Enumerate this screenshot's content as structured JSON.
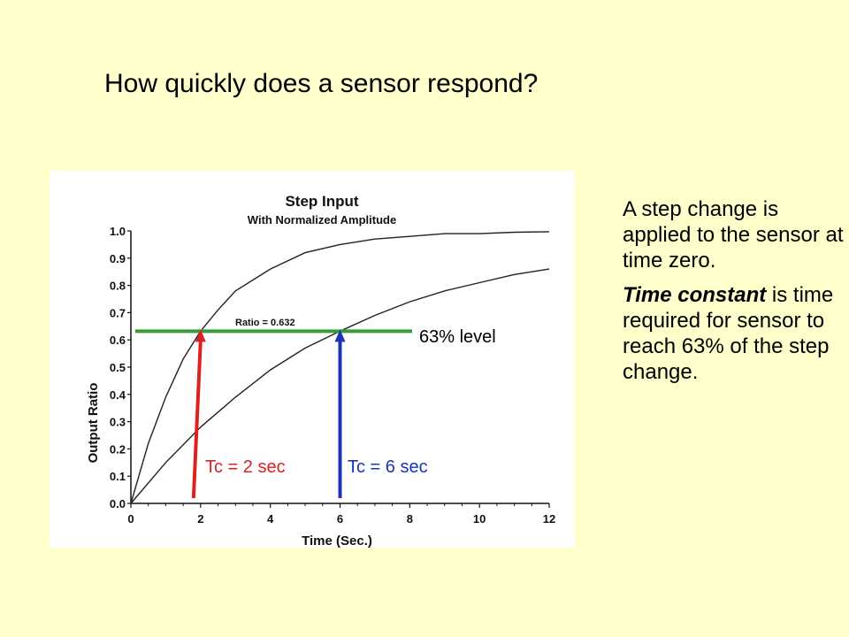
{
  "slide": {
    "title": "How quickly does a sensor respond?",
    "description_1": "A step change is applied to the sensor at time zero.",
    "description_2_em": "Time constant",
    "description_2_rest": " is time required for sensor to reach 63% of the step change."
  },
  "overlay": {
    "level_label": "63% level",
    "tc2_label": "Tc = 2 sec",
    "tc6_label": "Tc = 6 sec"
  },
  "colors": {
    "background": "#ffffcc",
    "level_line": "#3a9a3a",
    "tc2_arrow": "#dd2020",
    "tc6_arrow": "#1a33bb"
  },
  "chart_data": {
    "type": "line",
    "title": "Step Input",
    "subtitle": "With Normalized Amplitude",
    "xlabel": "Time (Sec.)",
    "ylabel": "Output Ratio",
    "xlim": [
      0,
      12
    ],
    "ylim": [
      0,
      1.0
    ],
    "x_ticks": [
      "0",
      "2",
      "4",
      "6",
      "8",
      "10",
      "12"
    ],
    "y_ticks": [
      "0.0",
      "0.1",
      "0.2",
      "0.3",
      "0.4",
      "0.5",
      "0.6",
      "0.7",
      "0.8",
      "0.9",
      "1.0"
    ],
    "series": [
      {
        "x": [
          0,
          0.5,
          1,
          1.5,
          2,
          2.5,
          3,
          4,
          5,
          6,
          7,
          8,
          9,
          10,
          11,
          12
        ],
        "values": [
          0,
          0.22,
          0.39,
          0.53,
          0.632,
          0.71,
          0.78,
          0.86,
          0.92,
          0.95,
          0.97,
          0.98,
          0.99,
          0.99,
          0.995,
          0.997
        ]
      },
      {
        "x": [
          0,
          1,
          2,
          3,
          4,
          5,
          6,
          7,
          8,
          9,
          10,
          11,
          12
        ],
        "values": [
          0,
          0.15,
          0.28,
          0.39,
          0.49,
          0.57,
          0.632,
          0.69,
          0.74,
          0.78,
          0.81,
          0.84,
          0.86
        ]
      }
    ],
    "annotation": "Ratio = 0.632",
    "level_value": 0.632,
    "time_constants": [
      2,
      6
    ],
    "grid": false,
    "legend": "none"
  }
}
